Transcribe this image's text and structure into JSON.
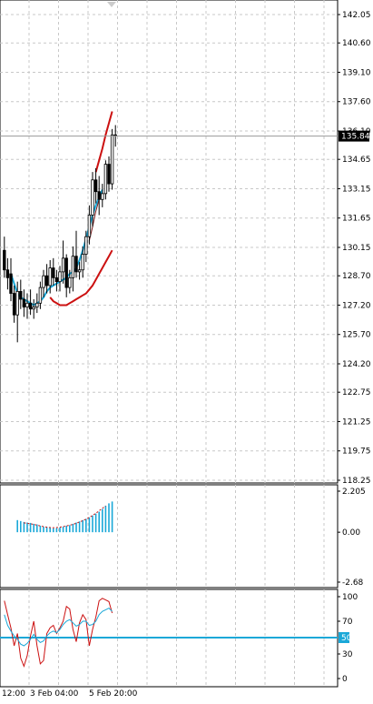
{
  "chart_data": [
    {
      "type": "candlestick",
      "panel": "price",
      "ylim": [
        118.25,
        142.8
      ],
      "y_ticks": [
        "142.05",
        "140.60",
        "139.10",
        "137.60",
        "136.10",
        "134.65",
        "133.15",
        "131.65",
        "130.15",
        "128.70",
        "127.20",
        "125.70",
        "124.20",
        "122.75",
        "121.25",
        "119.75",
        "118.25"
      ],
      "current_price": 135.84,
      "current_price_label": "135.84",
      "grid": true,
      "candles": [
        {
          "o": 130.0,
          "h": 130.7,
          "l": 128.6,
          "c": 129.0
        },
        {
          "o": 129.0,
          "h": 129.6,
          "l": 128.0,
          "c": 128.6
        },
        {
          "o": 128.8,
          "h": 129.6,
          "l": 127.4,
          "c": 127.8
        },
        {
          "o": 127.8,
          "h": 128.2,
          "l": 126.3,
          "c": 126.7
        },
        {
          "o": 126.7,
          "h": 128.4,
          "l": 125.3,
          "c": 127.9
        },
        {
          "o": 127.9,
          "h": 128.5,
          "l": 127.0,
          "c": 127.5
        },
        {
          "o": 127.5,
          "h": 128.0,
          "l": 126.6,
          "c": 127.1
        },
        {
          "o": 127.1,
          "h": 127.8,
          "l": 126.5,
          "c": 127.3
        },
        {
          "o": 127.3,
          "h": 128.0,
          "l": 126.7,
          "c": 127.0
        },
        {
          "o": 127.0,
          "h": 127.5,
          "l": 126.5,
          "c": 127.1
        },
        {
          "o": 127.1,
          "h": 127.8,
          "l": 126.8,
          "c": 127.3
        },
        {
          "o": 127.3,
          "h": 128.4,
          "l": 127.0,
          "c": 128.1
        },
        {
          "o": 128.1,
          "h": 129.0,
          "l": 127.6,
          "c": 128.7
        },
        {
          "o": 128.7,
          "h": 129.3,
          "l": 127.8,
          "c": 128.2
        },
        {
          "o": 128.2,
          "h": 129.5,
          "l": 127.8,
          "c": 129.1
        },
        {
          "o": 129.1,
          "h": 129.6,
          "l": 128.2,
          "c": 128.6
        },
        {
          "o": 128.6,
          "h": 129.0,
          "l": 127.9,
          "c": 128.4
        },
        {
          "o": 128.4,
          "h": 129.2,
          "l": 127.9,
          "c": 128.9
        },
        {
          "o": 128.9,
          "h": 130.5,
          "l": 128.3,
          "c": 129.6
        },
        {
          "o": 129.6,
          "h": 129.8,
          "l": 127.6,
          "c": 128.1
        },
        {
          "o": 128.1,
          "h": 129.0,
          "l": 127.8,
          "c": 128.6
        },
        {
          "o": 128.6,
          "h": 130.2,
          "l": 127.9,
          "c": 129.7
        },
        {
          "o": 129.7,
          "h": 131.0,
          "l": 128.6,
          "c": 128.9
        },
        {
          "o": 128.9,
          "h": 129.4,
          "l": 128.5,
          "c": 129.0
        },
        {
          "o": 129.0,
          "h": 130.2,
          "l": 128.6,
          "c": 129.8
        },
        {
          "o": 129.8,
          "h": 131.0,
          "l": 129.4,
          "c": 130.7
        },
        {
          "o": 130.7,
          "h": 132.3,
          "l": 130.3,
          "c": 131.8
        },
        {
          "o": 131.8,
          "h": 134.0,
          "l": 131.2,
          "c": 133.6
        },
        {
          "o": 133.6,
          "h": 134.2,
          "l": 132.4,
          "c": 133.0
        },
        {
          "o": 133.0,
          "h": 133.8,
          "l": 131.8,
          "c": 132.6
        },
        {
          "o": 132.6,
          "h": 133.4,
          "l": 132.2,
          "c": 132.9
        },
        {
          "o": 132.9,
          "h": 134.6,
          "l": 132.6,
          "c": 134.4
        },
        {
          "o": 134.4,
          "h": 134.8,
          "l": 133.0,
          "c": 133.4
        },
        {
          "o": 133.4,
          "h": 136.2,
          "l": 133.1,
          "c": 135.9
        },
        {
          "o": 135.9,
          "h": 136.4,
          "l": 135.3,
          "c": 135.84
        }
      ],
      "series": [
        {
          "color": "#1aa8d8",
          "values": [
            128.8,
            128.3,
            127.8,
            127.6,
            127.5,
            127.4,
            127.3,
            127.2,
            127.3,
            127.4,
            127.6,
            127.9,
            128.1,
            128.2,
            128.3,
            128.4,
            128.5,
            128.6,
            128.8,
            128.9,
            129.1,
            129.5,
            130.0,
            130.6,
            131.2,
            131.8,
            132.3,
            132.7,
            133.1
          ]
        },
        {
          "color": "#cc1111",
          "values": [
            127.6,
            127.4,
            127.3,
            127.2,
            127.2,
            127.2,
            127.3,
            127.4,
            127.5,
            127.6,
            127.7,
            127.8,
            128.0,
            128.2,
            128.5,
            128.8,
            129.1,
            129.4,
            129.7,
            130.0
          ]
        },
        {
          "color": "#cc1111",
          "values": [
            134.0,
            134.6,
            135.2,
            135.9,
            136.5,
            137.1
          ]
        },
        {
          "color": "#7a1a1a",
          "values": [
            130.5,
            131.2,
            132.0,
            132.6
          ]
        }
      ]
    },
    {
      "type": "bar",
      "panel": "oscillator",
      "ylim": [
        -2.68,
        2.205
      ],
      "y_ticks": [
        "2.205",
        "0.00",
        "-2.68"
      ],
      "zero_line": true,
      "values": [
        0.65,
        0.6,
        0.55,
        0.52,
        0.5,
        0.45,
        0.42,
        0.35,
        0.3,
        0.28,
        0.25,
        0.2,
        0.22,
        0.25,
        0.3,
        0.35,
        0.38,
        0.45,
        0.52,
        0.58,
        0.65,
        0.72,
        0.8,
        0.9,
        1.0,
        1.1,
        1.25,
        1.42,
        1.55,
        1.65
      ],
      "signal": [
        0.5,
        0.48,
        0.45,
        0.42,
        0.38,
        0.34,
        0.3,
        0.27,
        0.25,
        0.24,
        0.25,
        0.27,
        0.3,
        0.34,
        0.38,
        0.42,
        0.48,
        0.55,
        0.62,
        0.7,
        0.8,
        0.9,
        1.02,
        1.15,
        1.28,
        1.42
      ],
      "bar_color": "#1aa8d8",
      "signal_color": "#cc1111"
    },
    {
      "type": "line",
      "panel": "stochastic",
      "ylim": [
        0,
        100
      ],
      "y_ticks": [
        "100",
        "70",
        "50",
        "30",
        "0"
      ],
      "level": 50,
      "level_label": "50",
      "series": [
        {
          "color": "#cc1111",
          "values": [
            95,
            78,
            62,
            40,
            55,
            25,
            15,
            28,
            52,
            70,
            40,
            18,
            22,
            55,
            62,
            65,
            55,
            62,
            70,
            88,
            85,
            60,
            45,
            68,
            78,
            72,
            40,
            60,
            75,
            95,
            98,
            96,
            94,
            80
          ]
        },
        {
          "color": "#1aa8d8",
          "values": [
            78,
            65,
            58,
            52,
            48,
            42,
            40,
            43,
            48,
            54,
            48,
            44,
            46,
            52,
            56,
            58,
            56,
            60,
            66,
            70,
            72,
            68,
            64,
            66,
            70,
            70,
            65,
            66,
            70,
            78,
            82,
            84,
            86,
            82
          ]
        }
      ]
    }
  ],
  "x_axis": {
    "labels": [
      "12:00",
      "3 Feb 04:00",
      "5 Feb 20:00"
    ]
  }
}
